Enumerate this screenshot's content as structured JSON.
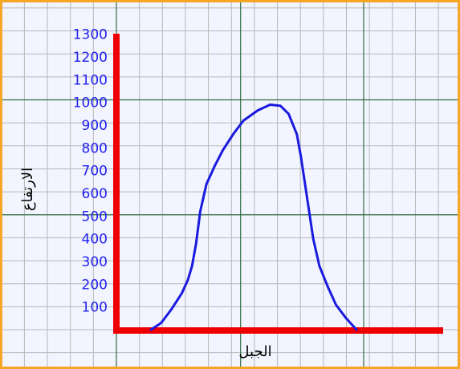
{
  "chart_data": {
    "type": "line",
    "xlabel": "الجبل",
    "ylabel": "الارتفاع",
    "yticks": [
      "100",
      "200",
      "300",
      "400",
      "500",
      "600",
      "700",
      "800",
      "900",
      "1000",
      "1100",
      "1200",
      "1300"
    ],
    "ylim": [
      0,
      1300
    ],
    "grid": true,
    "series": [
      {
        "color": "#1a1adf",
        "points": [
          [
            0.0,
            0
          ],
          [
            0.05,
            30
          ],
          [
            0.1,
            90
          ],
          [
            0.15,
            160
          ],
          [
            0.18,
            220
          ],
          [
            0.2,
            280
          ],
          [
            0.22,
            380
          ],
          [
            0.24,
            520
          ],
          [
            0.27,
            640
          ],
          [
            0.31,
            720
          ],
          [
            0.35,
            790
          ],
          [
            0.4,
            860
          ],
          [
            0.45,
            920
          ],
          [
            0.52,
            965
          ],
          [
            0.58,
            990
          ],
          [
            0.63,
            985
          ],
          [
            0.67,
            950
          ],
          [
            0.71,
            860
          ],
          [
            0.73,
            760
          ],
          [
            0.75,
            640
          ],
          [
            0.77,
            520
          ],
          [
            0.79,
            400
          ],
          [
            0.82,
            280
          ],
          [
            0.86,
            190
          ],
          [
            0.9,
            110
          ],
          [
            0.95,
            50
          ],
          [
            1.0,
            0
          ]
        ]
      }
    ]
  },
  "colors": {
    "background": "#f5a623",
    "plot_bg": "#f2f4ff",
    "grid_minor": "#b8b8b8",
    "grid_major": "#2f6b40",
    "axis": "#ee0000",
    "curve": "#1a1adf",
    "ticks": "#2222ee"
  }
}
